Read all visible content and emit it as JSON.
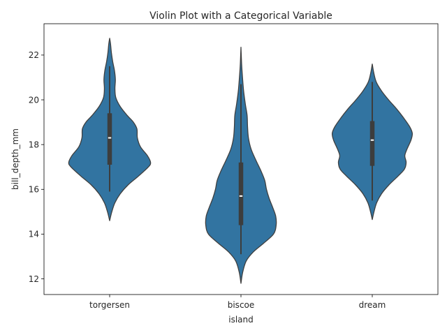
{
  "chart_data": {
    "type": "violin",
    "title": "Violin Plot with a Categorical Variable",
    "xlabel": "island",
    "ylabel": "bill_depth_mm",
    "ylim": [
      11.3,
      23.4
    ],
    "yticks": [
      12,
      14,
      16,
      18,
      20,
      22
    ],
    "categories": [
      "torgersen",
      "biscoe",
      "dream"
    ],
    "violins": [
      {
        "name": "torgersen",
        "profile": [
          [
            14.6,
            0.0
          ],
          [
            15.0,
            0.05
          ],
          [
            15.4,
            0.12
          ],
          [
            15.8,
            0.24
          ],
          [
            16.2,
            0.42
          ],
          [
            16.6,
            0.66
          ],
          [
            17.0,
            0.88
          ],
          [
            17.2,
            0.93
          ],
          [
            17.5,
            0.86
          ],
          [
            17.9,
            0.7
          ],
          [
            18.3,
            0.63
          ],
          [
            18.7,
            0.62
          ],
          [
            19.0,
            0.54
          ],
          [
            19.3,
            0.4
          ],
          [
            19.7,
            0.24
          ],
          [
            20.1,
            0.14
          ],
          [
            20.5,
            0.12
          ],
          [
            20.9,
            0.13
          ],
          [
            21.3,
            0.11
          ],
          [
            21.7,
            0.07
          ],
          [
            22.1,
            0.04
          ],
          [
            22.5,
            0.02
          ],
          [
            22.75,
            0.0
          ]
        ],
        "whisker": [
          15.9,
          21.5
        ],
        "q1": 17.1,
        "median": 18.3,
        "q3": 19.4
      },
      {
        "name": "biscoe",
        "profile": [
          [
            11.8,
            0.0
          ],
          [
            12.3,
            0.04
          ],
          [
            12.8,
            0.12
          ],
          [
            13.2,
            0.28
          ],
          [
            13.6,
            0.52
          ],
          [
            14.0,
            0.74
          ],
          [
            14.4,
            0.8
          ],
          [
            14.8,
            0.79
          ],
          [
            15.2,
            0.72
          ],
          [
            15.6,
            0.64
          ],
          [
            16.0,
            0.58
          ],
          [
            16.4,
            0.54
          ],
          [
            16.8,
            0.46
          ],
          [
            17.3,
            0.34
          ],
          [
            17.8,
            0.23
          ],
          [
            18.3,
            0.17
          ],
          [
            18.8,
            0.15
          ],
          [
            19.3,
            0.14
          ],
          [
            19.8,
            0.1
          ],
          [
            20.4,
            0.06
          ],
          [
            21.0,
            0.035
          ],
          [
            21.6,
            0.015
          ],
          [
            22.35,
            0.0
          ]
        ],
        "whisker": [
          13.1,
          20.7
        ],
        "q1": 14.4,
        "median": 15.7,
        "q3": 17.2
      },
      {
        "name": "dream",
        "profile": [
          [
            14.65,
            0.0
          ],
          [
            15.0,
            0.04
          ],
          [
            15.4,
            0.1
          ],
          [
            15.8,
            0.21
          ],
          [
            16.2,
            0.38
          ],
          [
            16.6,
            0.59
          ],
          [
            16.9,
            0.73
          ],
          [
            17.2,
            0.77
          ],
          [
            17.5,
            0.74
          ],
          [
            17.8,
            0.79
          ],
          [
            18.2,
            0.88
          ],
          [
            18.5,
            0.91
          ],
          [
            18.8,
            0.85
          ],
          [
            19.2,
            0.71
          ],
          [
            19.6,
            0.55
          ],
          [
            20.0,
            0.37
          ],
          [
            20.4,
            0.21
          ],
          [
            20.8,
            0.09
          ],
          [
            21.2,
            0.035
          ],
          [
            21.6,
            0.0
          ]
        ],
        "whisker": [
          15.5,
          20.8
        ],
        "q1": 17.05,
        "median": 18.2,
        "q3": 19.05
      }
    ],
    "colors": {
      "fill": "#3274a1",
      "edge": "#3f3f3f",
      "box": "#3d3d3d",
      "median": "#ffffff",
      "axis": "#000000"
    }
  }
}
